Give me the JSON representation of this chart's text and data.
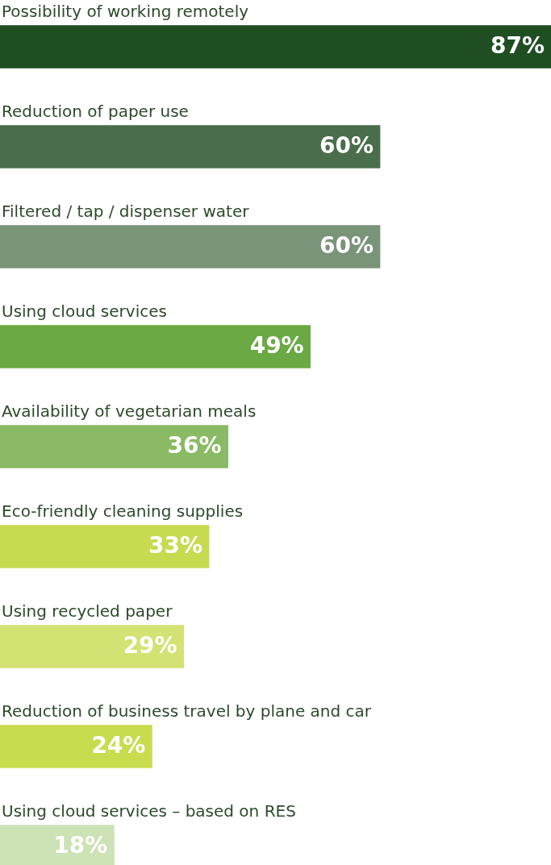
{
  "chart_data": {
    "type": "bar",
    "orientation": "horizontal",
    "categories": [
      "Possibility of working remotely",
      "Reduction of paper use",
      "Filtered / tap / dispenser water",
      "Using cloud services",
      "Availability of vegetarian meals",
      "Eco-friendly cleaning supplies",
      "Using recycled paper",
      "Reduction of business travel by plane and car",
      "Using cloud services – based on RES"
    ],
    "values": [
      87,
      60,
      60,
      49,
      36,
      33,
      29,
      24,
      18
    ],
    "value_labels": [
      "87%",
      "60%",
      "60%",
      "49%",
      "36%",
      "33%",
      "29%",
      "24%",
      "18%"
    ],
    "colors": [
      "#1f4e23",
      "#4a6e4b",
      "#7a9479",
      "#6aa943",
      "#8aba64",
      "#c8da50",
      "#d3e272",
      "#c9dc4e",
      "#cde2b5"
    ]
  }
}
